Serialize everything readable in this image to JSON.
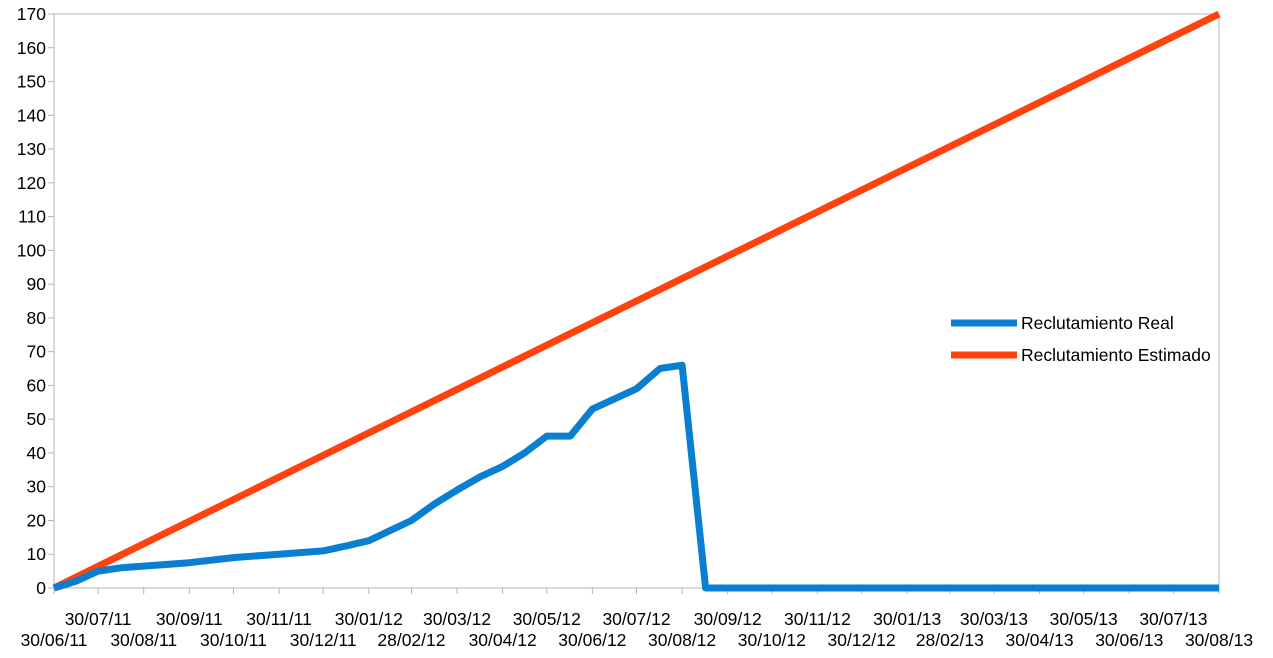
{
  "chart_data": {
    "type": "line",
    "title": "",
    "xlabel": "",
    "ylabel": "",
    "ylim": [
      0,
      170
    ],
    "y_ticks": [
      0,
      10,
      20,
      30,
      40,
      50,
      60,
      70,
      80,
      90,
      100,
      110,
      120,
      130,
      140,
      150,
      160,
      170
    ],
    "grid": false,
    "legend_position": "right",
    "categories": [
      "30/06/11",
      "30/07/11",
      "30/08/11",
      "30/09/11",
      "30/10/11",
      "30/11/11",
      "30/12/11",
      "30/01/12",
      "28/02/12",
      "30/03/12",
      "30/04/12",
      "30/05/12",
      "30/06/12",
      "30/07/12",
      "30/08/12",
      "30/09/12",
      "30/10/12",
      "30/11/12",
      "30/12/12",
      "30/01/13",
      "28/02/13",
      "30/03/13",
      "30/04/13",
      "30/05/13",
      "30/06/13",
      "30/07/13",
      "30/08/13"
    ],
    "series": [
      {
        "name": "Reclutamiento Real",
        "color": "#0a7fd2",
        "points": [
          {
            "x": "30/06/11",
            "y": 0
          },
          {
            "x": "15/07/11",
            "y": 2
          },
          {
            "x": "30/07/11",
            "y": 5
          },
          {
            "x": "15/08/11",
            "y": 6
          },
          {
            "x": "30/08/11",
            "y": 6.5
          },
          {
            "x": "15/09/11",
            "y": 7
          },
          {
            "x": "30/09/11",
            "y": 7.5
          },
          {
            "x": "30/10/11",
            "y": 9
          },
          {
            "x": "30/11/11",
            "y": 10
          },
          {
            "x": "30/12/11",
            "y": 11
          },
          {
            "x": "15/01/12",
            "y": 12.5
          },
          {
            "x": "30/01/12",
            "y": 14
          },
          {
            "x": "28/02/12",
            "y": 20
          },
          {
            "x": "15/03/12",
            "y": 25
          },
          {
            "x": "30/03/12",
            "y": 29
          },
          {
            "x": "15/04/12",
            "y": 33
          },
          {
            "x": "30/04/12",
            "y": 36
          },
          {
            "x": "15/05/12",
            "y": 40
          },
          {
            "x": "30/05/12",
            "y": 45
          },
          {
            "x": "15/06/12",
            "y": 45
          },
          {
            "x": "30/06/12",
            "y": 53
          },
          {
            "x": "15/07/12",
            "y": 56
          },
          {
            "x": "30/07/12",
            "y": 59
          },
          {
            "x": "15/08/12",
            "y": 65
          },
          {
            "x": "30/08/12",
            "y": 66
          },
          {
            "x": "15/09/12",
            "y": 0
          },
          {
            "x": "30/09/12",
            "y": 0
          },
          {
            "x": "30/10/12",
            "y": 0
          },
          {
            "x": "30/11/12",
            "y": 0
          },
          {
            "x": "30/12/12",
            "y": 0
          },
          {
            "x": "30/01/13",
            "y": 0
          },
          {
            "x": "28/02/13",
            "y": 0
          },
          {
            "x": "30/03/13",
            "y": 0
          },
          {
            "x": "30/04/13",
            "y": 0
          },
          {
            "x": "30/05/13",
            "y": 0
          },
          {
            "x": "30/06/13",
            "y": 0
          },
          {
            "x": "30/07/13",
            "y": 0
          },
          {
            "x": "30/08/13",
            "y": 0
          }
        ]
      },
      {
        "name": "Reclutamiento Estimado",
        "color": "#ff420e",
        "points": [
          {
            "x": "30/06/11",
            "y": 0
          },
          {
            "x": "30/08/13",
            "y": 170
          }
        ]
      }
    ]
  }
}
